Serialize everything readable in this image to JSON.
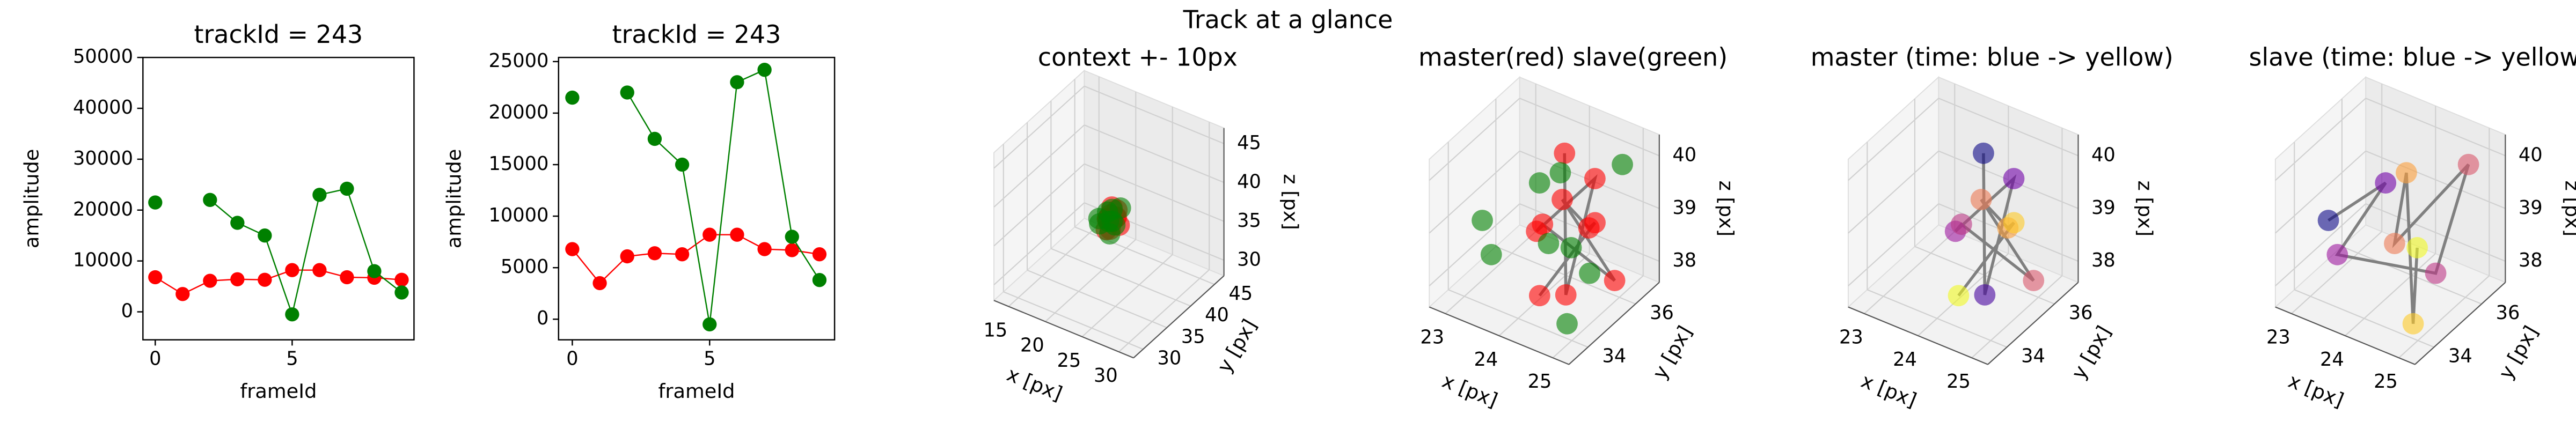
{
  "suptitle": "Track at a glance",
  "chart_data": [
    {
      "type": "line",
      "title": "trackId = 243",
      "xlabel": "frameId",
      "ylabel": "amplitude",
      "x": [
        0,
        1,
        2,
        3,
        4,
        5,
        6,
        7,
        8,
        9
      ],
      "series": [
        {
          "color": "#ff0000",
          "values": [
            6800,
            3500,
            6100,
            6400,
            6300,
            8200,
            8200,
            6800,
            6700,
            6300
          ]
        },
        {
          "color": "#008000",
          "values": [
            21500,
            null,
            22000,
            17500,
            15000,
            -500,
            23000,
            24200,
            8000,
            3800
          ]
        }
      ],
      "xlim": [
        -0.45,
        9.45
      ],
      "ylim": [
        -5500,
        50000
      ],
      "xticks": [
        0,
        5
      ],
      "yticks": [
        0,
        10000,
        20000,
        30000,
        40000,
        50000
      ]
    },
    {
      "type": "line",
      "title": "trackId = 243",
      "xlabel": "frameId",
      "ylabel": "amplitude",
      "x": [
        0,
        1,
        2,
        3,
        4,
        5,
        6,
        7,
        8,
        9
      ],
      "series": [
        {
          "color": "#ff0000",
          "values": [
            6800,
            3500,
            6100,
            6400,
            6300,
            8200,
            8200,
            6800,
            6700,
            6300
          ]
        },
        {
          "color": "#008000",
          "values": [
            21500,
            null,
            22000,
            17500,
            15000,
            -500,
            23000,
            24200,
            8000,
            3800
          ]
        }
      ],
      "xlim": [
        -0.5,
        9.55
      ],
      "ylim": [
        -2000,
        25400
      ],
      "xticks": [
        0,
        5
      ],
      "yticks": [
        0,
        5000,
        10000,
        15000,
        20000,
        25000
      ]
    },
    {
      "type": "scatter3d",
      "title": "context +- 10px",
      "xlabel": "x [px]",
      "ylabel": "y [px]",
      "zlabel": "z [px]",
      "xlim": [
        13,
        32
      ],
      "ylim": [
        28,
        47
      ],
      "zlim": [
        28,
        47
      ],
      "xticks": [
        15,
        20,
        25,
        30
      ],
      "yticks": [
        30,
        35,
        40,
        45
      ],
      "zticks": [
        30,
        35,
        40,
        45
      ],
      "series": [
        {
          "color": "#ff0000",
          "line_color": "#808080",
          "x": [
            24.2,
            24.8,
            24.5,
            23.9,
            24.1,
            25.0,
            24.6,
            24.3,
            24.9,
            24.4
          ],
          "y": [
            35.5,
            34.2,
            36.1,
            35.0,
            34.8,
            35.8,
            34.5,
            36.3,
            35.2,
            34.0
          ],
          "z": [
            40.2,
            38.3,
            39.6,
            38.8,
            39.1,
            38.0,
            39.9,
            38.5,
            39.3,
            38.2
          ]
        },
        {
          "color": "#008000",
          "x": [
            23.2,
            24.0,
            23.5,
            24.8,
            25.1,
            24.3,
            23.9,
            25.0,
            24.5
          ],
          "y": [
            34.3,
            34.9,
            34.0,
            35.2,
            35.9,
            34.6,
            36.0,
            33.8,
            35.1
          ],
          "z": [
            39.0,
            39.8,
            38.6,
            38.3,
            40.2,
            38.9,
            39.5,
            38.0,
            38.7
          ]
        }
      ]
    },
    {
      "type": "scatter3d",
      "title": "master(red) slave(green)",
      "xlabel": "x [px]",
      "ylabel": "y [px]",
      "zlabel": "z [px]",
      "xlim": [
        22.7,
        25.3
      ],
      "ylim": [
        33.2,
        37.0
      ],
      "zlim": [
        37.6,
        40.4
      ],
      "xticks": [
        23,
        24,
        25
      ],
      "yticks": [
        34,
        36
      ],
      "zticks": [
        38,
        39,
        40
      ],
      "series": [
        {
          "color": "#ff0000",
          "line_color": "#808080",
          "x": [
            24.2,
            24.8,
            24.5,
            23.9,
            24.1,
            25.0,
            24.6,
            24.3,
            24.9,
            24.4
          ],
          "y": [
            35.5,
            34.2,
            36.1,
            35.0,
            34.8,
            35.8,
            34.5,
            36.3,
            35.2,
            34.0
          ],
          "z": [
            40.2,
            38.3,
            39.6,
            38.8,
            39.1,
            38.0,
            39.9,
            38.5,
            39.3,
            38.2
          ]
        },
        {
          "color": "#008000",
          "x": [
            23.2,
            24.0,
            23.5,
            24.8,
            25.1,
            24.3,
            23.9,
            25.0,
            24.5
          ],
          "y": [
            34.3,
            34.9,
            34.0,
            35.2,
            35.9,
            34.6,
            36.0,
            33.8,
            35.1
          ],
          "z": [
            39.0,
            39.8,
            38.6,
            38.3,
            40.2,
            38.9,
            39.5,
            38.0,
            38.7
          ]
        }
      ]
    },
    {
      "type": "scatter3d",
      "title": "master (time: blue -> yellow)",
      "xlabel": "x [px]",
      "ylabel": "y [px]",
      "zlabel": "z [px]",
      "xlim": [
        22.7,
        25.3
      ],
      "ylim": [
        33.2,
        37.0
      ],
      "zlim": [
        37.6,
        40.4
      ],
      "xticks": [
        23,
        24,
        25
      ],
      "yticks": [
        34,
        36
      ],
      "zticks": [
        38,
        39,
        40
      ],
      "series": [
        {
          "colors": [
            "#0d0887",
            "#46039f",
            "#7201a8",
            "#9c179e",
            "#bd3786",
            "#d8576b",
            "#ed7953",
            "#fb9f3a",
            "#fdca26",
            "#f0f921"
          ],
          "line_color": "#808080",
          "x": [
            24.2,
            24.8,
            24.5,
            23.9,
            24.1,
            25.0,
            24.6,
            24.3,
            24.9,
            24.4
          ],
          "y": [
            35.5,
            34.2,
            36.1,
            35.0,
            34.8,
            35.8,
            34.5,
            36.3,
            35.2,
            34.0
          ],
          "z": [
            40.2,
            38.3,
            39.6,
            38.8,
            39.1,
            38.0,
            39.9,
            38.5,
            39.3,
            38.2
          ]
        }
      ]
    },
    {
      "type": "scatter3d",
      "title": "slave (time: blue -> yellow)",
      "xlabel": "x [px]",
      "ylabel": "y [px]",
      "zlabel": "z [px]",
      "xlim": [
        22.7,
        25.3
      ],
      "ylim": [
        33.2,
        37.0
      ],
      "zlim": [
        37.6,
        40.4
      ],
      "xticks": [
        23,
        24,
        25
      ],
      "yticks": [
        34,
        36
      ],
      "zticks": [
        38,
        39,
        40
      ],
      "series": [
        {
          "colors": [
            "#0d0887",
            "#7201a8",
            "#9c179e",
            "#bd3786",
            "#d8576b",
            "#ed7953",
            "#fb9f3a",
            "#fdca26",
            "#f0f921"
          ],
          "line_color": "#808080",
          "x": [
            23.2,
            24.0,
            23.5,
            24.8,
            25.1,
            24.3,
            23.9,
            25.0,
            24.5
          ],
          "y": [
            34.3,
            34.9,
            34.0,
            35.2,
            35.9,
            34.6,
            36.0,
            33.8,
            35.1
          ],
          "z": [
            39.0,
            39.8,
            38.6,
            38.3,
            40.2,
            38.9,
            39.5,
            38.0,
            38.7
          ]
        }
      ]
    }
  ]
}
